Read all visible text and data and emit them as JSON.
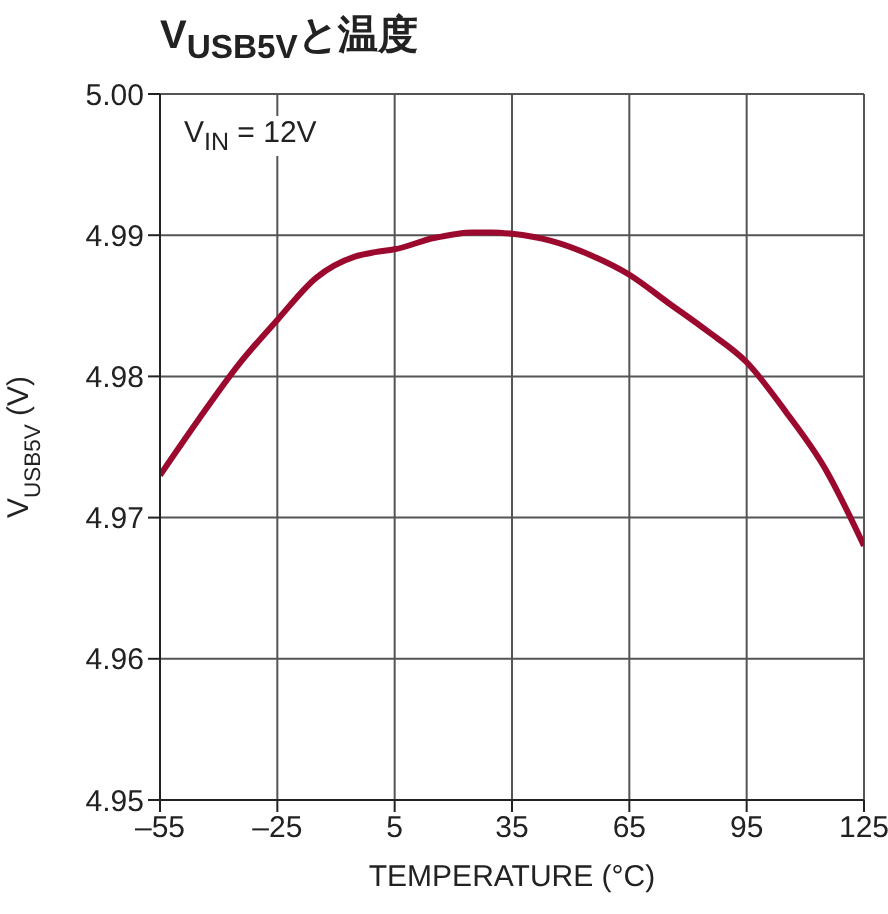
{
  "chart_data": {
    "type": "line",
    "title": "V$_{USB5V}$と温度",
    "xlabel": "TEMPERATURE (°C)",
    "ylabel": "V$_{USB5V}$ (V)",
    "annotations": [
      "V$_{IN}$ = 12V"
    ],
    "x": [
      -55,
      -45,
      -35,
      -25,
      -15,
      -5,
      0,
      5,
      15,
      25,
      30,
      35,
      45,
      55,
      65,
      75,
      85,
      95,
      105,
      115,
      125
    ],
    "series": [
      {
        "color": "#9b0a2e",
        "values": [
          4.973,
          4.977,
          4.9808,
          4.984,
          4.987,
          4.9885,
          4.9888,
          4.989,
          4.9898,
          4.9902,
          4.9902,
          4.9901,
          4.9896,
          4.9886,
          4.9872,
          4.9852,
          4.9832,
          4.981,
          4.9775,
          4.9735,
          4.968
        ]
      }
    ],
    "xlim": [
      -55,
      125
    ],
    "xticks": [
      {
        "value": -55,
        "label": "–55"
      },
      {
        "value": -25,
        "label": "–25"
      },
      5,
      35,
      65,
      95,
      125
    ],
    "ylim": [
      4.95,
      5
    ],
    "yticks": [
      {
        "value": 4.95,
        "label": "4.95"
      },
      4.96,
      4.97,
      4.98,
      4.99,
      {
        "value": 5,
        "label": "5.00"
      }
    ],
    "grid": true,
    "legend": false,
    "marker": "none",
    "line_style": "solid"
  }
}
